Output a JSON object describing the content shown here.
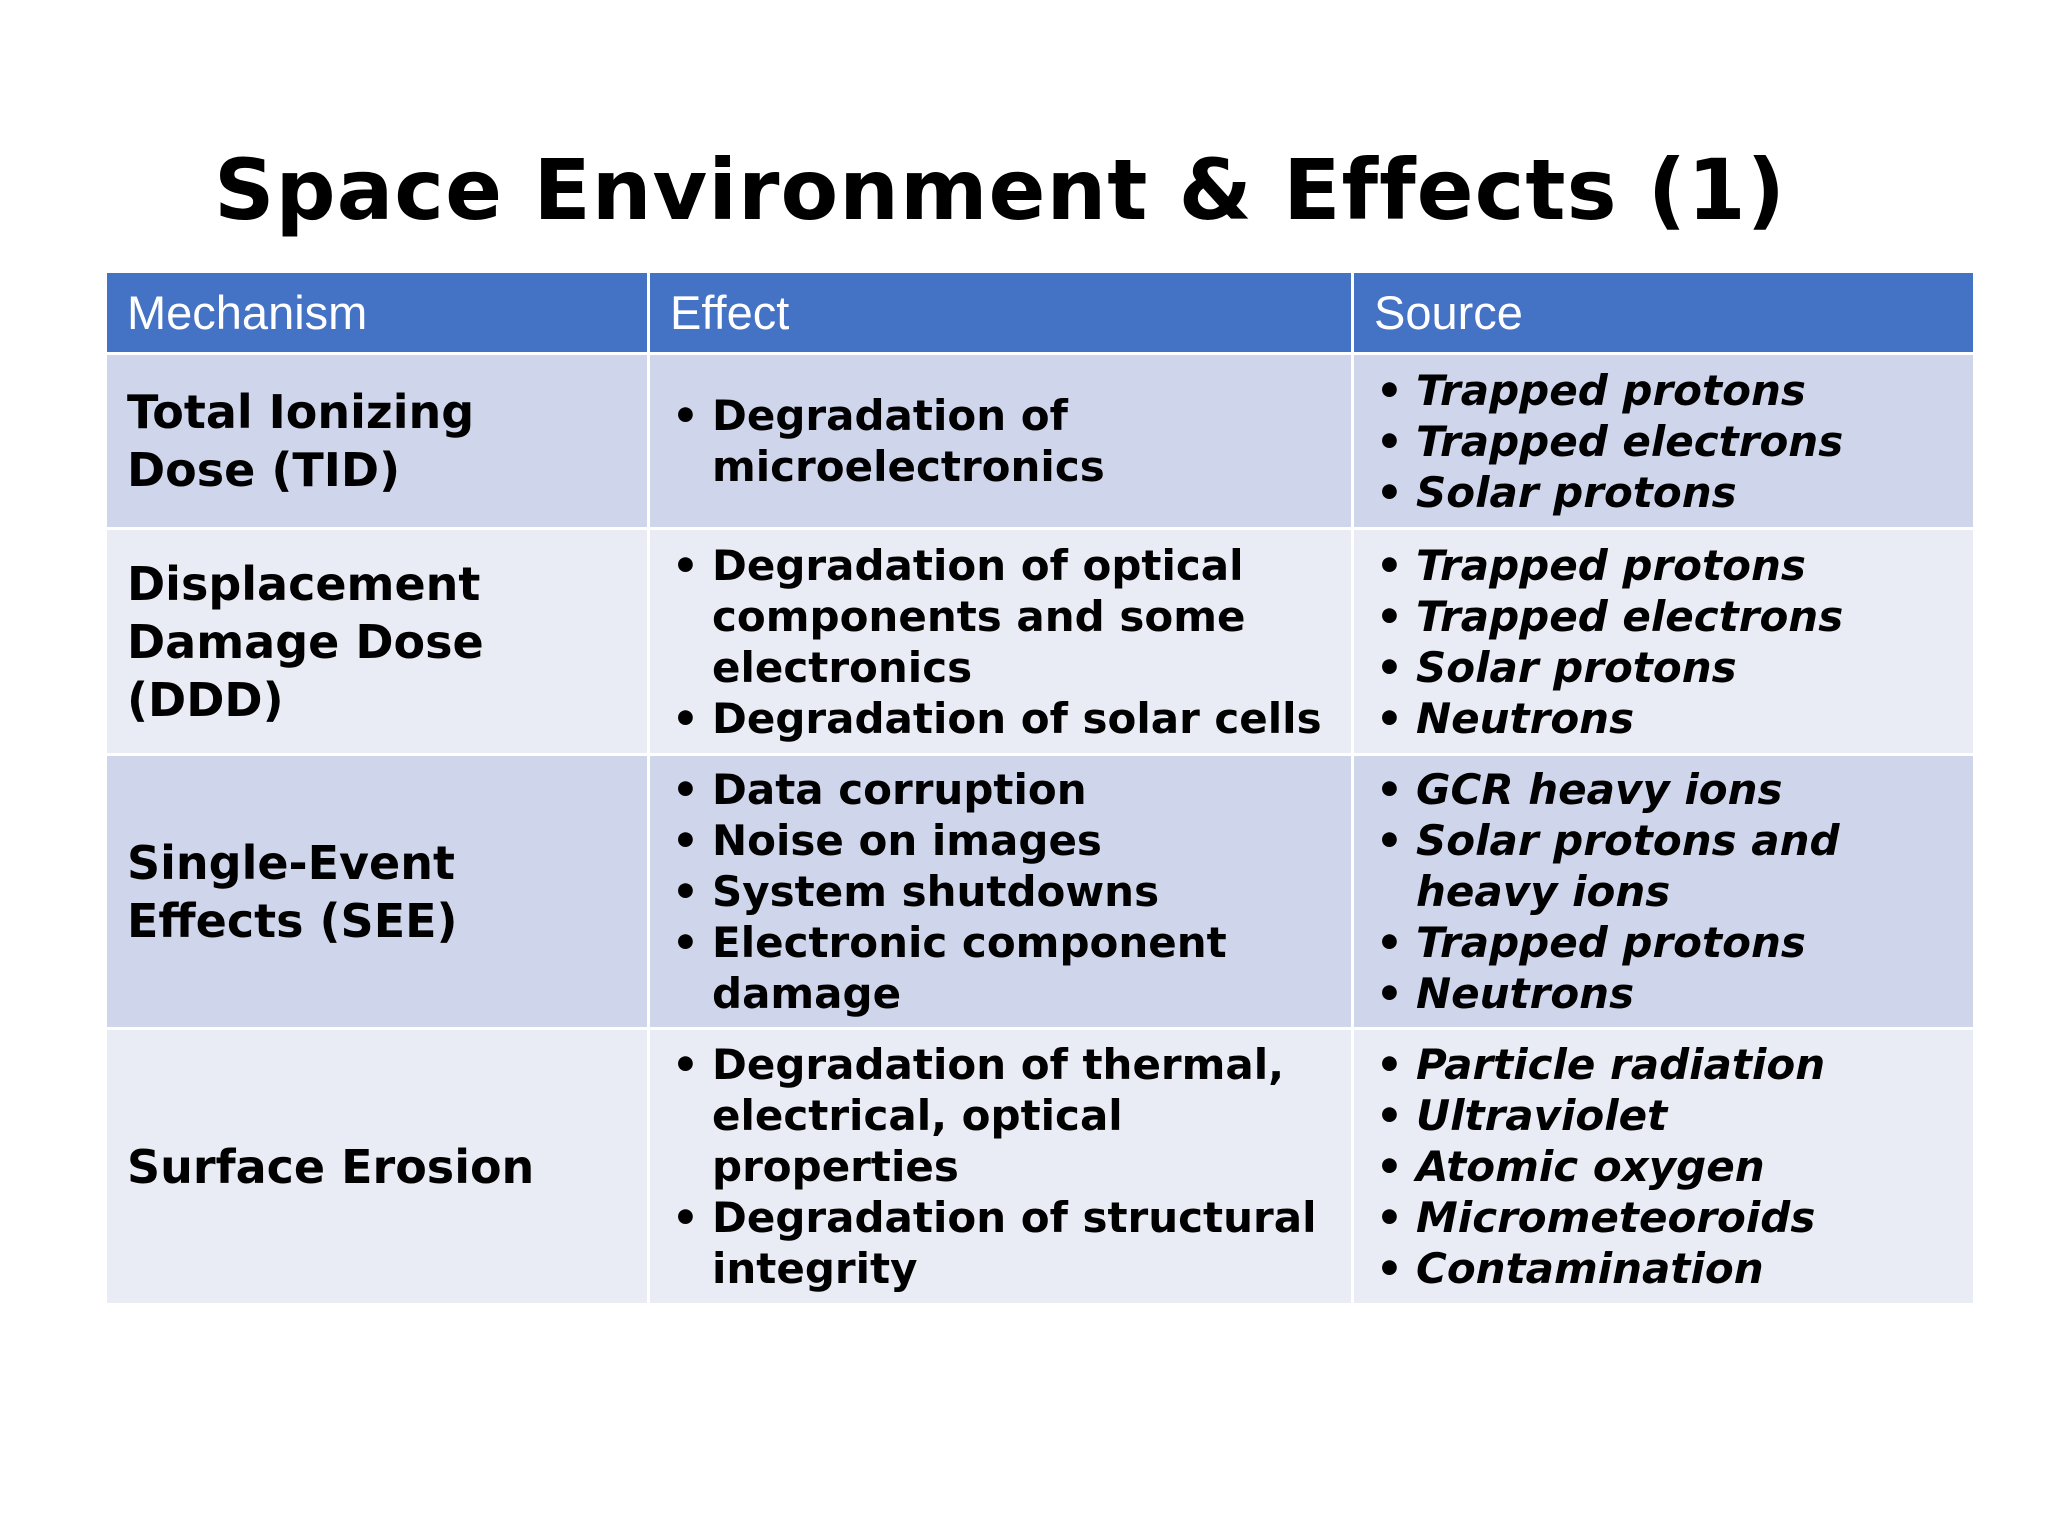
{
  "slide": {
    "title": "Space Environment & Effects (1)"
  },
  "table": {
    "headers": [
      "Mechanism",
      "Effect",
      "Source"
    ],
    "rows": [
      {
        "mechanism": "Total Ionizing Dose (TID)",
        "effects": [
          "Degradation of microelectronics"
        ],
        "sources": [
          "Trapped protons",
          "Trapped electrons",
          "Solar protons"
        ]
      },
      {
        "mechanism": "Displacement Damage Dose (DDD)",
        "effects": [
          "Degradation of optical components and some electronics",
          "Degradation of solar cells"
        ],
        "sources": [
          "Trapped protons",
          "Trapped electrons",
          "Solar protons",
          "Neutrons"
        ]
      },
      {
        "mechanism": "Single-Event Effects (SEE)",
        "effects": [
          "Data corruption",
          "Noise on images",
          "System shutdowns",
          "Electronic component damage"
        ],
        "sources": [
          "GCR heavy ions",
          "Solar protons and heavy ions",
          "Trapped protons",
          "Neutrons"
        ]
      },
      {
        "mechanism": "Surface Erosion",
        "effects": [
          "Degradation of thermal, electrical, optical properties",
          "Degradation of structural integrity"
        ],
        "sources": [
          "Particle radiation",
          "Ultraviolet",
          "Atomic oxygen",
          "Micrometeoroids",
          "Contamination"
        ]
      }
    ]
  },
  "colors": {
    "header_bg": "#4472c4",
    "header_text": "#ffffff",
    "row_dark": "#cfd5ea",
    "row_light": "#e9ebf5"
  }
}
